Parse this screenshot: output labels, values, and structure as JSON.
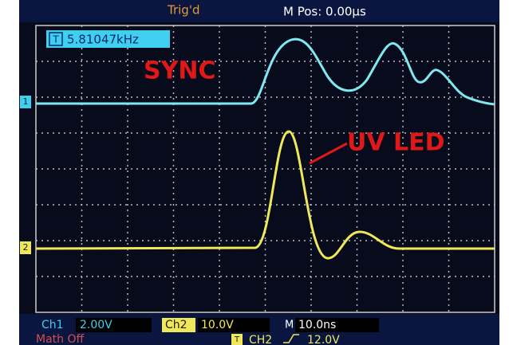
{
  "header": {
    "trigger": "Trig'd",
    "position": "M Pos: 0.00µs"
  },
  "frequency": {
    "icon": "T",
    "value": "5.81047kHz"
  },
  "annotations": [
    "SYNC",
    "UV LED"
  ],
  "channel_markers": [
    "1",
    "2"
  ],
  "footer": {
    "ch1": {
      "label": "Ch1",
      "scale": "2.00V"
    },
    "ch2": {
      "label": "Ch2",
      "scale": "10.0V"
    },
    "timebase": {
      "label": "M",
      "scale": "10.0ns"
    },
    "math": "Math Off",
    "trigger": {
      "icon": "T",
      "source": "CH2",
      "level": "12.0V"
    }
  }
}
